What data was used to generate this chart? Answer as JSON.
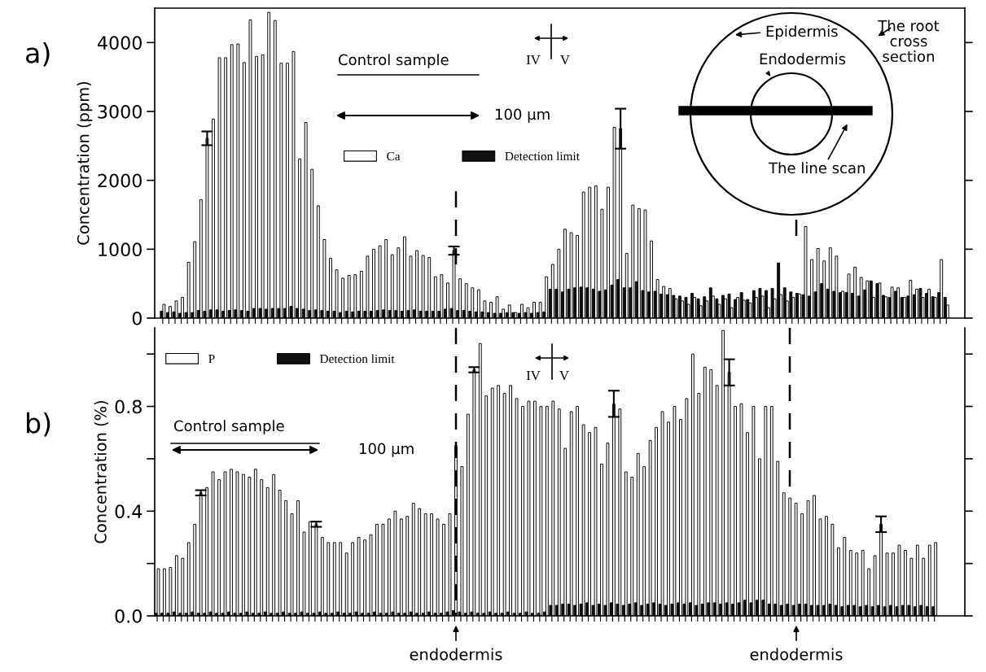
{
  "chart_data": [
    {
      "type": "bar",
      "ylabel": "Concentration (ppm)",
      "ylim": [
        0,
        4500
      ],
      "yticks": [
        0,
        1000,
        2000,
        3000,
        4000
      ],
      "grid": false,
      "legend": "center left",
      "tick_labels": "y",
      "annotations": [
        "a)",
        "Control sample",
        "100 µm",
        "IV",
        "V",
        "Epidermis",
        "Endodermis",
        "The root\ncross\nsection",
        "The line scan"
      ],
      "categories": [
        null,
        null,
        null,
        null,
        null,
        null,
        null,
        null,
        null,
        null,
        null,
        null,
        null,
        null,
        null,
        null,
        null,
        null,
        null,
        null,
        null,
        null,
        null,
        null,
        null,
        null,
        null,
        null,
        null,
        null,
        null,
        null,
        null,
        null,
        null,
        null,
        null,
        null,
        null,
        null,
        null,
        null,
        null,
        null,
        null,
        null,
        null,
        null,
        null,
        null,
        null,
        null,
        null,
        null,
        null,
        null,
        null,
        null,
        null,
        null,
        null,
        null,
        null,
        null,
        null,
        null,
        null,
        null,
        null,
        null,
        null,
        null,
        null,
        null,
        null,
        null,
        null,
        null,
        null,
        null,
        null,
        null,
        null,
        null,
        null,
        null,
        null,
        null,
        null,
        null,
        null,
        null,
        null,
        null,
        null,
        null,
        null,
        null,
        null,
        null,
        null,
        null,
        null,
        null,
        null,
        null,
        null,
        null,
        null,
        null,
        null,
        null,
        null,
        null,
        null,
        null,
        null,
        null,
        null,
        null,
        null,
        null,
        null,
        null,
        null,
        null,
        null,
        null
      ],
      "series": [
        {
          "name": "Ca",
          "color": "#ffffff",
          "values": [
            200,
            170,
            250,
            300,
            810,
            1110,
            1720,
            2610,
            2890,
            3780,
            3780,
            3970,
            3980,
            3710,
            4330,
            3800,
            3820,
            4440,
            4320,
            3700,
            3700,
            3870,
            2310,
            2840,
            2160,
            1630,
            1140,
            870,
            700,
            580,
            620,
            630,
            680,
            900,
            1000,
            1050,
            1140,
            920,
            1020,
            1180,
            900,
            980,
            910,
            880,
            600,
            630,
            510,
            980,
            570,
            500,
            440,
            410,
            250,
            230,
            310,
            130,
            190,
            80,
            200,
            150,
            230,
            230,
            600,
            780,
            1000,
            1290,
            1240,
            1200,
            1830,
            1900,
            1920,
            1580,
            1900,
            2770,
            2750,
            940,
            1640,
            1590,
            1570,
            1120,
            560,
            460,
            430,
            280,
            250,
            200,
            300,
            180,
            250,
            320,
            200,
            280,
            150,
            300,
            260,
            220,
            300,
            320,
            150,
            280,
            340,
            250,
            300,
            350,
            1330,
            850,
            1010,
            830,
            1020,
            900,
            390,
            640,
            740,
            590,
            540,
            300,
            510,
            310,
            450,
            440,
            300,
            550,
            420,
            300,
            420,
            300,
            850,
            190
          ],
          "errors": [
            null,
            null,
            null,
            null,
            null,
            null,
            null,
            100,
            null,
            null,
            null,
            null,
            null,
            null,
            null,
            null,
            null,
            null,
            null,
            null,
            null,
            null,
            null,
            null,
            null,
            null,
            null,
            null,
            null,
            null,
            null,
            null,
            null,
            null,
            null,
            null,
            null,
            null,
            null,
            null,
            null,
            null,
            null,
            null,
            null,
            null,
            null,
            60,
            null,
            null,
            null,
            null,
            null,
            null,
            null,
            null,
            null,
            null,
            null,
            null,
            null,
            null,
            null,
            null,
            null,
            null,
            null,
            null,
            null,
            null,
            null,
            null,
            null,
            null,
            290,
            null,
            null,
            null,
            null,
            null,
            null,
            null,
            null,
            null,
            null,
            null,
            null,
            null,
            null,
            null,
            null,
            null,
            null,
            null,
            null,
            null,
            null,
            null,
            null,
            null,
            null,
            null,
            null,
            null,
            null,
            null,
            null,
            null,
            null,
            null,
            null,
            null,
            null,
            null,
            null,
            null,
            null,
            null,
            null,
            null,
            null,
            null,
            null,
            null,
            null,
            null,
            null,
            null
          ]
        },
        {
          "name": "Detection limit",
          "color": "#111111",
          "values": [
            100,
            80,
            90,
            70,
            80,
            80,
            110,
            100,
            120,
            120,
            100,
            110,
            120,
            110,
            100,
            140,
            140,
            130,
            140,
            140,
            140,
            170,
            140,
            130,
            110,
            120,
            110,
            100,
            100,
            80,
            100,
            90,
            100,
            100,
            100,
            110,
            120,
            110,
            110,
            100,
            110,
            120,
            100,
            100,
            100,
            100,
            130,
            140,
            110,
            110,
            100,
            90,
            90,
            80,
            70,
            70,
            80,
            80,
            70,
            80,
            70,
            80,
            90,
            420,
            420,
            380,
            420,
            440,
            450,
            440,
            420,
            390,
            410,
            480,
            560,
            440,
            440,
            530,
            400,
            380,
            390,
            350,
            340,
            330,
            320,
            300,
            360,
            280,
            310,
            440,
            280,
            330,
            350,
            270,
            370,
            270,
            400,
            430,
            400,
            430,
            800,
            440,
            380,
            360,
            340,
            320,
            380,
            500,
            420,
            390,
            370,
            370,
            360,
            320,
            410,
            540,
            500,
            330,
            300,
            390,
            300,
            320,
            340,
            430,
            360,
            310,
            370,
            300
          ]
        }
      ]
    },
    {
      "type": "bar",
      "ylabel": "Concentration (%)",
      "ylim": [
        0,
        1.1
      ],
      "yticks": [
        {
          "value": 0,
          "label": "0.0"
        },
        {
          "value": 0.2,
          "label": null
        },
        0.4,
        {
          "value": 0.6,
          "label": null
        },
        0.8,
        {
          "value": 1.0,
          "label": null
        }
      ],
      "grid": false,
      "legend": "top left",
      "tick_labels": "y",
      "annotations": [
        "b)",
        "Control sample",
        "100 µm",
        "IV",
        "V",
        "endodermis",
        "endodermis"
      ],
      "categories": [
        null,
        null,
        null,
        null,
        null,
        null,
        null,
        null,
        null,
        null,
        null,
        null,
        null,
        null,
        null,
        null,
        null,
        null,
        null,
        null,
        null,
        null,
        null,
        null,
        null,
        null,
        null,
        null,
        null,
        null,
        null,
        null,
        null,
        null,
        null,
        null,
        null,
        null,
        null,
        null,
        null,
        null,
        null,
        null,
        null,
        null,
        null,
        null,
        null,
        null,
        null,
        null,
        null,
        null,
        null,
        null,
        null,
        null,
        null,
        null,
        null,
        null,
        null,
        null,
        null,
        null,
        null,
        null,
        null,
        null,
        null,
        null,
        null,
        null,
        null,
        null,
        null,
        null,
        null,
        null,
        null,
        null,
        null,
        null,
        null,
        null,
        null,
        null,
        null,
        null,
        null,
        null,
        null,
        null,
        null,
        null,
        null,
        null,
        null,
        null,
        null,
        null,
        null,
        null,
        null,
        null,
        null,
        null,
        null,
        null,
        null,
        null,
        null,
        null,
        null,
        null,
        null,
        null,
        null,
        null,
        null,
        null,
        null,
        null,
        null,
        null,
        null,
        null,
        null
      ],
      "series": [
        {
          "name": "P",
          "color": "#ffffff",
          "values": [
            0.18,
            0.18,
            0.185,
            0.23,
            0.22,
            0.28,
            0.35,
            0.47,
            0.49,
            0.55,
            0.52,
            0.55,
            0.56,
            0.55,
            0.54,
            0.53,
            0.56,
            0.52,
            0.49,
            0.54,
            0.48,
            0.44,
            0.39,
            0.44,
            0.32,
            0.36,
            0.35,
            0.3,
            0.28,
            0.28,
            0.28,
            0.24,
            0.28,
            0.3,
            0.29,
            0.31,
            0.35,
            0.35,
            0.37,
            0.4,
            0.37,
            0.38,
            0.43,
            0.41,
            0.39,
            0.39,
            0.37,
            0.35,
            0.39,
            0.65,
            0.57,
            0.77,
            0.94,
            1.04,
            0.84,
            0.87,
            0.88,
            0.85,
            0.88,
            0.83,
            0.8,
            0.82,
            0.82,
            0.8,
            0.8,
            0.82,
            0.79,
            0.64,
            0.78,
            0.8,
            0.73,
            0.7,
            0.72,
            0.58,
            0.66,
            0.81,
            0.79,
            0.55,
            0.53,
            0.62,
            0.57,
            0.67,
            0.72,
            0.78,
            0.74,
            0.8,
            0.75,
            0.83,
            1.0,
            0.85,
            0.95,
            0.94,
            0.88,
            1.09,
            0.93,
            0.8,
            0.81,
            0.7,
            0.8,
            0.6,
            0.8,
            0.8,
            0.59,
            0.47,
            0.45,
            0.43,
            0.39,
            0.44,
            0.46,
            0.37,
            0.38,
            0.35,
            0.26,
            0.3,
            0.25,
            0.24,
            0.25,
            0.18,
            0.23,
            0.35,
            0.24,
            0.24,
            0.27,
            0.25,
            0.22,
            0.27,
            0.22,
            0.27,
            0.28
          ],
          "errors": [
            null,
            null,
            null,
            null,
            null,
            null,
            null,
            0.01,
            null,
            null,
            null,
            null,
            null,
            null,
            null,
            null,
            null,
            null,
            null,
            null,
            null,
            null,
            null,
            null,
            null,
            null,
            0.01,
            null,
            null,
            null,
            null,
            null,
            null,
            null,
            null,
            null,
            null,
            null,
            null,
            null,
            null,
            null,
            null,
            null,
            null,
            null,
            null,
            null,
            null,
            null,
            null,
            null,
            0.01,
            null,
            null,
            null,
            null,
            null,
            null,
            null,
            null,
            null,
            null,
            null,
            null,
            null,
            null,
            null,
            null,
            null,
            null,
            null,
            null,
            null,
            null,
            0.05,
            null,
            null,
            null,
            null,
            null,
            null,
            null,
            null,
            null,
            null,
            null,
            null,
            null,
            null,
            null,
            null,
            null,
            null,
            0.05,
            null,
            null,
            null,
            null,
            null,
            null,
            null,
            null,
            null,
            null,
            null,
            null,
            null,
            null,
            null,
            null,
            null,
            null,
            null,
            null,
            null,
            null,
            null,
            null,
            0.03,
            null,
            null,
            null,
            null,
            null,
            null,
            null,
            null,
            null
          ]
        },
        {
          "name": "Detection limit",
          "color": "#111111",
          "values": [
            0.01,
            0.01,
            0.01,
            0.015,
            0.01,
            0.01,
            0.015,
            0.01,
            0.01,
            0.015,
            0.01,
            0.01,
            0.015,
            0.01,
            0.01,
            0.015,
            0.01,
            0.01,
            0.015,
            0.01,
            0.01,
            0.015,
            0.01,
            0.01,
            0.015,
            0.01,
            0.01,
            0.015,
            0.01,
            0.01,
            0.015,
            0.01,
            0.01,
            0.015,
            0.01,
            0.01,
            0.015,
            0.01,
            0.01,
            0.015,
            0.01,
            0.01,
            0.015,
            0.01,
            0.01,
            0.015,
            0.01,
            0.01,
            0.015,
            0.02,
            0.015,
            0.01,
            0.015,
            0.01,
            0.01,
            0.015,
            0.01,
            0.01,
            0.015,
            0.01,
            0.01,
            0.015,
            0.01,
            0.01,
            0.015,
            0.04,
            0.04,
            0.045,
            0.045,
            0.04,
            0.045,
            0.05,
            0.04,
            0.045,
            0.04,
            0.05,
            0.045,
            0.04,
            0.045,
            0.05,
            0.04,
            0.045,
            0.05,
            0.045,
            0.04,
            0.045,
            0.05,
            0.045,
            0.05,
            0.04,
            0.045,
            0.05,
            0.05,
            0.045,
            0.05,
            0.045,
            0.05,
            0.06,
            0.05,
            0.06,
            0.06,
            0.045,
            0.045,
            0.04,
            0.045,
            0.04,
            0.045,
            0.045,
            0.04,
            0.04,
            0.04,
            0.045,
            0.04,
            0.035,
            0.04,
            0.04,
            0.035,
            0.04,
            0.035,
            0.04,
            0.035,
            0.04,
            0.035,
            0.04,
            0.04,
            0.035,
            0.04,
            0.035,
            0.035
          ]
        }
      ]
    }
  ]
}
